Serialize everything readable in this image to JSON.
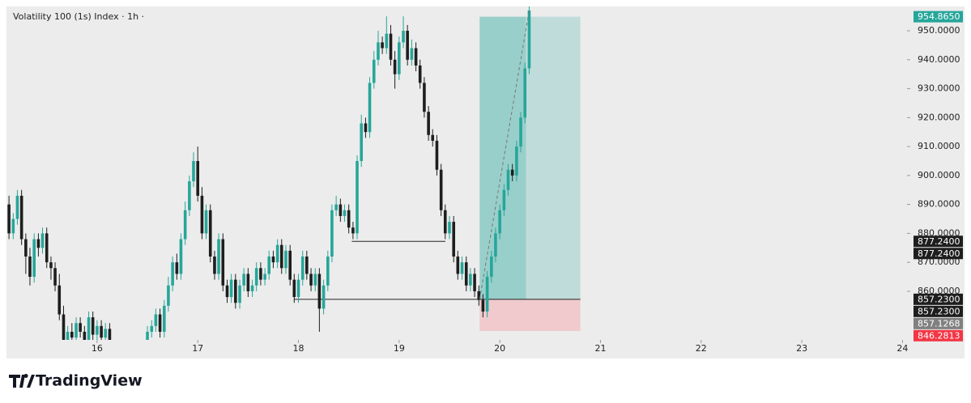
{
  "chart_data": {
    "type": "candlestick",
    "title": "Volatility 100 (1s) Index · 1h ·",
    "brand": "TradingView",
    "up_color": "#26a69a",
    "down_color": "#1e1e1e",
    "xlim": [
      15.1,
      24.045
    ],
    "ylim": [
      843.2,
      958.4
    ],
    "xticks": [
      16,
      17,
      18,
      19,
      20,
      21,
      22,
      23,
      24
    ],
    "yticks": [
      {
        "value": 860,
        "label": "860.0000"
      },
      {
        "value": 870,
        "label": "870.0000"
      },
      {
        "value": 880,
        "label": "880.0000"
      },
      {
        "value": 890,
        "label": "890.0000"
      },
      {
        "value": 900,
        "label": "900.0000"
      },
      {
        "value": 910,
        "label": "910.0000"
      },
      {
        "value": 920,
        "label": "920.0000"
      },
      {
        "value": 930,
        "label": "930.0000"
      },
      {
        "value": 940,
        "label": "940.0000"
      },
      {
        "value": 950,
        "label": "950.0000"
      }
    ],
    "x": [
      15.125,
      15.167,
      15.208,
      15.25,
      15.292,
      15.333,
      15.375,
      15.417,
      15.458,
      15.5,
      15.542,
      15.583,
      15.625,
      15.667,
      15.708,
      15.75,
      15.792,
      15.833,
      15.875,
      15.917,
      15.958,
      16,
      16.042,
      16.083,
      16.125,
      16.5,
      16.542,
      16.583,
      16.625,
      16.667,
      16.708,
      16.75,
      16.792,
      16.833,
      16.875,
      16.917,
      16.958,
      17,
      17.042,
      17.083,
      17.125,
      17.167,
      17.208,
      17.25,
      17.292,
      17.333,
      17.375,
      17.417,
      17.458,
      17.5,
      17.542,
      17.583,
      17.625,
      17.667,
      17.708,
      17.75,
      17.792,
      17.833,
      17.875,
      17.917,
      17.958,
      18,
      18.042,
      18.083,
      18.125,
      18.167,
      18.208,
      18.25,
      18.292,
      18.333,
      18.375,
      18.417,
      18.458,
      18.5,
      18.542,
      18.583,
      18.625,
      18.667,
      18.708,
      18.75,
      18.792,
      18.833,
      18.875,
      18.917,
      18.958,
      19,
      19.042,
      19.083,
      19.125,
      19.167,
      19.208,
      19.25,
      19.292,
      19.333,
      19.375,
      19.417,
      19.458,
      19.5,
      19.542,
      19.583,
      19.625,
      19.667,
      19.708,
      19.75,
      19.792,
      19.833,
      19.875,
      19.917,
      19.958,
      20,
      20.042,
      20.083,
      20.125,
      20.167,
      20.208,
      20.25,
      20.292
    ],
    "open": [
      890,
      880,
      885,
      893,
      878,
      872,
      865,
      878,
      875,
      880,
      870,
      868,
      862,
      852,
      843,
      846,
      844,
      849,
      846,
      843,
      851,
      845,
      848,
      844,
      847,
      843,
      846,
      848,
      852,
      846,
      855,
      862,
      870,
      866,
      878,
      888,
      898,
      905,
      893,
      880,
      888,
      872,
      866,
      878,
      862,
      858,
      864,
      856,
      862,
      866,
      860,
      862,
      868,
      864,
      866,
      872,
      870,
      876,
      868,
      874,
      864,
      858,
      864,
      872,
      866,
      862,
      866,
      854,
      862,
      872,
      888,
      890,
      886,
      888,
      882,
      880,
      905,
      918,
      915,
      932,
      940,
      946,
      944,
      949,
      940,
      935,
      946,
      950,
      940,
      944,
      938,
      932,
      922,
      914,
      912,
      902,
      888,
      880,
      884,
      872,
      866,
      870,
      862,
      866,
      860,
      857,
      853,
      865,
      872,
      880,
      888,
      895,
      902,
      900,
      910,
      920,
      937
    ],
    "high": [
      893,
      887,
      895,
      895,
      880,
      875,
      880,
      880,
      882,
      882,
      872,
      870,
      866,
      855,
      848,
      849,
      851,
      851,
      848,
      853,
      853,
      850,
      850,
      849,
      849,
      848,
      850,
      854,
      854,
      857,
      865,
      872,
      873,
      880,
      891,
      900,
      908,
      910,
      896,
      890,
      890,
      874,
      880,
      880,
      864,
      866,
      866,
      864,
      868,
      868,
      864,
      870,
      870,
      868,
      874,
      874,
      878,
      878,
      876,
      876,
      866,
      866,
      874,
      874,
      868,
      868,
      868,
      864,
      874,
      890,
      893,
      892,
      890,
      890,
      884,
      907,
      921,
      920,
      934,
      943,
      950,
      948,
      955,
      952,
      943,
      948,
      955,
      952,
      947,
      946,
      940,
      934,
      924,
      916,
      914,
      904,
      890,
      886,
      886,
      874,
      872,
      872,
      868,
      868,
      862,
      859,
      867,
      874,
      882,
      890,
      897,
      904,
      904,
      912,
      922,
      939,
      960
    ],
    "low": [
      878,
      878,
      883,
      876,
      866,
      862,
      863,
      872,
      873,
      868,
      864,
      860,
      850,
      842,
      841,
      842,
      842,
      844,
      841,
      841,
      843,
      843,
      842,
      842,
      841,
      841,
      844,
      846,
      844,
      844,
      853,
      860,
      864,
      864,
      876,
      886,
      896,
      891,
      878,
      878,
      870,
      864,
      864,
      860,
      856,
      856,
      854,
      854,
      860,
      858,
      858,
      860,
      862,
      862,
      864,
      868,
      868,
      866,
      866,
      862,
      856,
      856,
      862,
      864,
      860,
      860,
      846,
      852,
      860,
      870,
      886,
      884,
      884,
      880,
      878,
      878,
      903,
      913,
      913,
      930,
      938,
      942,
      942,
      938,
      930,
      933,
      944,
      938,
      938,
      936,
      930,
      920,
      912,
      910,
      900,
      886,
      878,
      878,
      870,
      864,
      864,
      860,
      860,
      858,
      855,
      851,
      851,
      863,
      870,
      878,
      886,
      893,
      898,
      898,
      908,
      918,
      935
    ],
    "close": [
      880,
      885,
      893,
      878,
      872,
      865,
      878,
      875,
      880,
      870,
      868,
      862,
      852,
      843,
      846,
      844,
      849,
      846,
      843,
      851,
      845,
      848,
      844,
      847,
      843,
      846,
      848,
      852,
      846,
      855,
      862,
      870,
      866,
      878,
      888,
      898,
      905,
      893,
      880,
      888,
      872,
      866,
      878,
      862,
      858,
      864,
      856,
      862,
      866,
      860,
      862,
      868,
      864,
      866,
      872,
      870,
      876,
      868,
      874,
      864,
      858,
      864,
      872,
      866,
      862,
      866,
      854,
      862,
      872,
      888,
      890,
      886,
      888,
      882,
      880,
      905,
      918,
      915,
      932,
      940,
      946,
      944,
      949,
      940,
      935,
      946,
      950,
      940,
      944,
      938,
      932,
      922,
      914,
      912,
      902,
      888,
      880,
      884,
      872,
      866,
      870,
      862,
      866,
      860,
      857,
      853,
      865,
      872,
      880,
      888,
      895,
      902,
      900,
      910,
      920,
      937,
      957
    ],
    "position": {
      "x_start": 19.8,
      "x_now": 20.26,
      "x_end": 20.8,
      "entry": 857.23,
      "target": 954.865,
      "stop": 846.2813,
      "profit_color": "#26a69a",
      "loss_color": "#f7a1a9"
    },
    "levels": [
      {
        "value": 877.24,
        "x_start": 18.53,
        "x_end": 19.46
      },
      {
        "value": 857.23,
        "x_start": 17.96,
        "x_end": 20.8
      }
    ],
    "price_labels": [
      {
        "value": 954.865,
        "label": "954.8650",
        "color": "#26a69a"
      },
      {
        "value": 877.24,
        "label": "877.2400",
        "color": "#1e1e1e"
      },
      {
        "value": 877.24,
        "label": "877.2400",
        "color": "#1e1e1e"
      },
      {
        "value": 857.23,
        "label": "857.2300",
        "color": "#1e1e1e"
      },
      {
        "value": 857.23,
        "label": "857.2300",
        "color": "#1e1e1e"
      },
      {
        "value": 857.1268,
        "label": "857.1268",
        "color": "#808080"
      },
      {
        "value": 846.2813,
        "label": "846.2813",
        "color": "#f23645"
      }
    ]
  }
}
